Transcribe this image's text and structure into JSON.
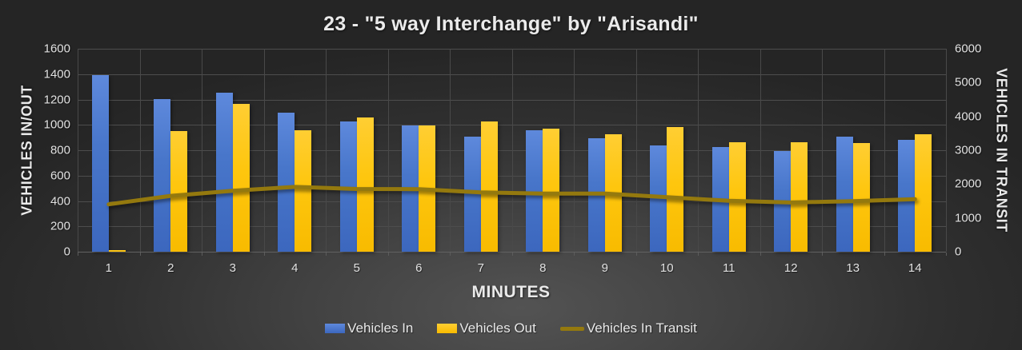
{
  "title": "23 - \"5 way Interchange\" by \"Arisandi\"",
  "chart_data": {
    "type": "bar",
    "subtype": "combo-bar-line-dual-axis",
    "title": "23 - \"5 way Interchange\" by \"Arisandi\"",
    "categories": [
      1,
      2,
      3,
      4,
      5,
      6,
      7,
      8,
      9,
      10,
      11,
      12,
      13,
      14
    ],
    "xlabel": "MINUTES",
    "axes": {
      "left": {
        "label": "VEHICLES IN/OUT",
        "min": 0,
        "max": 1600,
        "step": 200
      },
      "right": {
        "label": "VEHICLES IN TRANSIT",
        "min": 0,
        "max": 6000,
        "step": 1000
      }
    },
    "series": [
      {
        "name": "Vehicles In",
        "type": "bar",
        "axis": "left",
        "color": "#4472C4",
        "values": [
          1390,
          1205,
          1255,
          1095,
          1025,
          995,
          910,
          955,
          895,
          835,
          825,
          795,
          910,
          885
        ]
      },
      {
        "name": "Vehicles Out",
        "type": "bar",
        "axis": "left",
        "color": "#FFC000",
        "values": [
          10,
          950,
          1165,
          960,
          1060,
          995,
          1030,
          970,
          925,
          985,
          860,
          860,
          855,
          925
        ]
      },
      {
        "name": "Vehicles In Transit",
        "type": "line",
        "axis": "right",
        "color": "#94790E",
        "values": [
          1400,
          1650,
          1800,
          1915,
          1855,
          1850,
          1755,
          1720,
          1720,
          1610,
          1505,
          1455,
          1495,
          1555
        ]
      }
    ],
    "grid": true,
    "legend_position": "bottom",
    "background_color": "#333333",
    "gridline_color": "#4D4D4D",
    "text_color": "#E8E8E8"
  }
}
